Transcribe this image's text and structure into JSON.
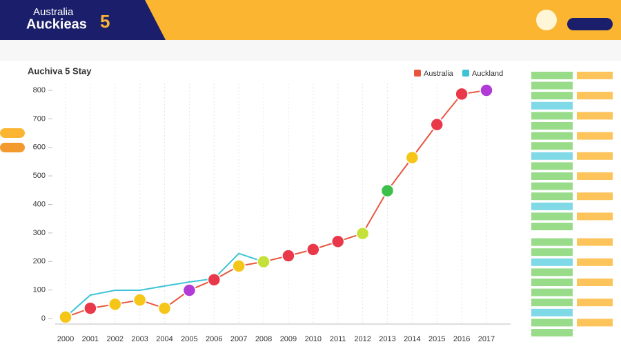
{
  "header": {
    "brand_line1": "Australia",
    "brand_line2": "Auckieas",
    "brand_number": "5"
  },
  "chart_data": {
    "type": "line",
    "title": "Auchiva 5 Stay",
    "categories": [
      "2000",
      "2001",
      "2002",
      "2003",
      "2004",
      "2005",
      "2006",
      "2007",
      "2008",
      "2009",
      "2010",
      "2011",
      "2012",
      "2013",
      "2014",
      "2015",
      "2016",
      "2017"
    ],
    "series": [
      {
        "name": "Australia",
        "color": "#e8553e",
        "marker_colors": [
          "#f5c518",
          "#e8384a",
          "#f5c518",
          "#f5c518",
          "#f5c518",
          "#b23ad6",
          "#e8384a",
          "#f5c518",
          "#c6e03a",
          "#e8384a",
          "#e8384a",
          "#e8384a",
          "#c6e03a",
          "#3cc04a",
          "#f5c518",
          "#e8384a",
          "#e8384a",
          "#b23ad6"
        ],
        "values": [
          5,
          36,
          50,
          65,
          36,
          99,
          136,
          184,
          199,
          220,
          242,
          270,
          298,
          448,
          564,
          680,
          787,
          800
        ]
      },
      {
        "name": "Auckland",
        "color": "#3cc4d6",
        "values": [
          5,
          82,
          99,
          99,
          114,
          128,
          140,
          228,
          199,
          null,
          null,
          null,
          null,
          null,
          null,
          null,
          null,
          null
        ]
      }
    ],
    "ylim": [
      0,
      800
    ],
    "yticks": [
      0,
      100,
      200,
      300,
      400,
      500,
      600,
      700,
      800
    ],
    "grid": "x",
    "legend": "top-right"
  }
}
